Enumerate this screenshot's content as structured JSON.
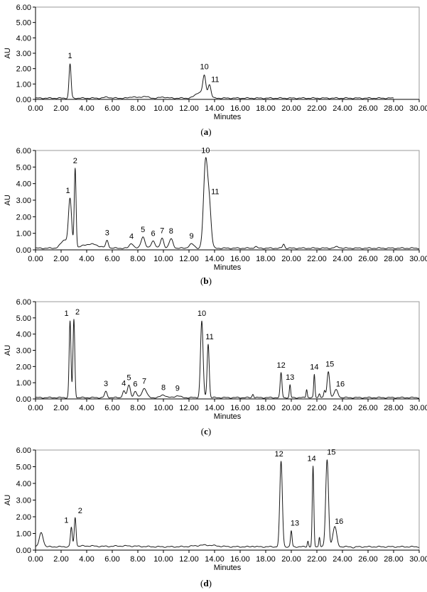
{
  "chart_data": [
    {
      "type": "line",
      "panel": "a",
      "panel_label": "(a)",
      "xlabel": "Minutes",
      "ylabel": "AU",
      "xlim": [
        0,
        30
      ],
      "ylim": [
        0,
        6
      ],
      "x_ticks": [
        "0.00",
        "2.00",
        "4.00",
        "6.00",
        "8.00",
        "10.00",
        "12.00",
        "14.00",
        "16.00",
        "18.00",
        "20.00",
        "22.00",
        "24.00",
        "26.00",
        "28.00",
        "30.00"
      ],
      "y_ticks": [
        "0.00",
        "1.00",
        "2.00",
        "3.00",
        "4.00",
        "5.00",
        "6.00"
      ],
      "trace_end": 28.0,
      "baseline": 0.08,
      "peaks": [
        {
          "label": "1",
          "x": 2.7,
          "y": 2.3,
          "w": 0.08
        },
        {
          "label": "10",
          "x": 13.2,
          "y": 1.4,
          "w": 0.12
        },
        {
          "label": "11",
          "x": 13.6,
          "y": 0.95,
          "w": 0.12
        }
      ],
      "minor_peaks": [
        {
          "x": 5.6,
          "y": 0.15,
          "w": 0.2
        },
        {
          "x": 7.6,
          "y": 0.18,
          "w": 0.2
        },
        {
          "x": 8.5,
          "y": 0.2,
          "w": 0.25
        },
        {
          "x": 10.0,
          "y": 0.15,
          "w": 0.25
        },
        {
          "x": 12.8,
          "y": 0.45,
          "w": 0.3
        }
      ]
    },
    {
      "type": "line",
      "panel": "b",
      "panel_label": "(b)",
      "xlabel": "Minutes",
      "ylabel": "AU",
      "xlim": [
        0,
        30
      ],
      "ylim": [
        0,
        6
      ],
      "x_ticks": [
        "0.00",
        "2.00",
        "4.00",
        "6.00",
        "8.00",
        "10.00",
        "12.00",
        "14.00",
        "16.00",
        "18.00",
        "20.00",
        "22.00",
        "24.00",
        "26.00",
        "28.00",
        "30.00"
      ],
      "y_ticks": [
        "0.00",
        "1.00",
        "2.00",
        "3.00",
        "4.00",
        "5.00",
        "6.00"
      ],
      "trace_end": 30.0,
      "baseline": 0.1,
      "peaks": [
        {
          "label": "1",
          "x": 2.7,
          "y": 2.9,
          "w": 0.12
        },
        {
          "label": "2",
          "x": 3.1,
          "y": 4.9,
          "w": 0.07
        },
        {
          "label": "3",
          "x": 5.6,
          "y": 0.55,
          "w": 0.1
        },
        {
          "label": "4",
          "x": 7.5,
          "y": 0.4,
          "w": 0.15
        },
        {
          "label": "5",
          "x": 8.4,
          "y": 0.8,
          "w": 0.15
        },
        {
          "label": "6",
          "x": 9.2,
          "y": 0.55,
          "w": 0.15
        },
        {
          "label": "7",
          "x": 9.9,
          "y": 0.7,
          "w": 0.13
        },
        {
          "label": "8",
          "x": 10.6,
          "y": 0.65,
          "w": 0.15
        },
        {
          "label": "9",
          "x": 12.2,
          "y": 0.35,
          "w": 0.2
        },
        {
          "label": "10",
          "x": 13.3,
          "y": 5.3,
          "w": 0.16
        },
        {
          "label": "11",
          "x": 13.6,
          "y": 2.4,
          "w": 0.14
        }
      ],
      "minor_peaks": [
        {
          "x": 2.3,
          "y": 0.6,
          "w": 0.3
        },
        {
          "x": 4.3,
          "y": 0.35,
          "w": 0.6
        },
        {
          "x": 19.4,
          "y": 0.35,
          "w": 0.08
        },
        {
          "x": 17.2,
          "y": 0.2,
          "w": 0.1
        },
        {
          "x": 23.6,
          "y": 0.18,
          "w": 0.2
        }
      ]
    },
    {
      "type": "line",
      "panel": "c",
      "panel_label": "(c)",
      "xlabel": "Minutes",
      "ylabel": "AU",
      "xlim": [
        0,
        30
      ],
      "ylim": [
        0,
        6
      ],
      "x_ticks": [
        "0.00",
        "2.00",
        "4.00",
        "6.00",
        "8.00",
        "10.00",
        "12.00",
        "14.00",
        "16.00",
        "18.00",
        "20.00",
        "22.00",
        "24.00",
        "26.00",
        "28.00",
        "30.00"
      ],
      "y_ticks": [
        "0.00",
        "1.00",
        "2.00",
        "3.00",
        "4.00",
        "5.00",
        "6.00"
      ],
      "trace_end": 30.0,
      "baseline": 0.08,
      "peaks": [
        {
          "label": "1",
          "x": 2.7,
          "y": 4.8,
          "w": 0.07
        },
        {
          "label": "2",
          "x": 3.0,
          "y": 4.9,
          "w": 0.07
        },
        {
          "label": "3",
          "x": 5.5,
          "y": 0.45,
          "w": 0.1
        },
        {
          "label": "4",
          "x": 6.9,
          "y": 0.5,
          "w": 0.1
        },
        {
          "label": "5",
          "x": 7.3,
          "y": 0.85,
          "w": 0.12
        },
        {
          "label": "6",
          "x": 7.8,
          "y": 0.45,
          "w": 0.12
        },
        {
          "label": "7",
          "x": 8.5,
          "y": 0.65,
          "w": 0.18
        },
        {
          "label": "8",
          "x": 10.0,
          "y": 0.25,
          "w": 0.2
        },
        {
          "label": "9",
          "x": 11.1,
          "y": 0.2,
          "w": 0.2
        },
        {
          "label": "10",
          "x": 13.0,
          "y": 4.8,
          "w": 0.1
        },
        {
          "label": "11",
          "x": 13.5,
          "y": 3.4,
          "w": 0.08
        },
        {
          "label": "12",
          "x": 19.2,
          "y": 1.6,
          "w": 0.07
        },
        {
          "label": "13",
          "x": 19.9,
          "y": 0.85,
          "w": 0.05
        },
        {
          "label": "14",
          "x": 21.8,
          "y": 1.5,
          "w": 0.05
        },
        {
          "label": "15",
          "x": 22.9,
          "y": 1.7,
          "w": 0.1
        },
        {
          "label": "16",
          "x": 23.5,
          "y": 0.55,
          "w": 0.15
        }
      ],
      "minor_peaks": [
        {
          "x": 17.0,
          "y": 0.3,
          "w": 0.06
        },
        {
          "x": 21.2,
          "y": 0.6,
          "w": 0.05
        },
        {
          "x": 22.2,
          "y": 0.35,
          "w": 0.06
        },
        {
          "x": 22.6,
          "y": 0.5,
          "w": 0.06
        }
      ]
    },
    {
      "type": "line",
      "panel": "d",
      "panel_label": "(d)",
      "xlabel": "Minutes",
      "ylabel": "AU",
      "xlim": [
        0,
        30
      ],
      "ylim": [
        0,
        6
      ],
      "x_ticks": [
        "0.00",
        "2.00",
        "4.00",
        "6.00",
        "8.00",
        "10.00",
        "12.00",
        "14.00",
        "16.00",
        "18.00",
        "20.00",
        "22.00",
        "24.00",
        "26.00",
        "28.00",
        "30.00"
      ],
      "y_ticks": [
        "0.00",
        "1.00",
        "2.00",
        "3.00",
        "4.00",
        "5.00",
        "6.00"
      ],
      "trace_end": 30.0,
      "baseline": 0.2,
      "peaks": [
        {
          "label": "1",
          "x": 2.8,
          "y": 1.35,
          "w": 0.07
        },
        {
          "label": "2",
          "x": 3.1,
          "y": 1.95,
          "w": 0.07
        },
        {
          "label": "12",
          "x": 19.2,
          "y": 5.3,
          "w": 0.1
        },
        {
          "label": "13",
          "x": 20.0,
          "y": 1.15,
          "w": 0.06
        },
        {
          "label": "14",
          "x": 21.7,
          "y": 5.0,
          "w": 0.06
        },
        {
          "label": "15",
          "x": 22.8,
          "y": 5.4,
          "w": 0.11
        },
        {
          "label": "16",
          "x": 23.4,
          "y": 1.4,
          "w": 0.15
        }
      ],
      "minor_peaks": [
        {
          "x": 0.45,
          "y": 1.05,
          "w": 0.15
        },
        {
          "x": 4.0,
          "y": 0.25,
          "w": 0.8
        },
        {
          "x": 7.0,
          "y": 0.25,
          "w": 1.0
        },
        {
          "x": 10.0,
          "y": 0.2,
          "w": 1.2
        },
        {
          "x": 13.3,
          "y": 0.3,
          "w": 0.8
        },
        {
          "x": 17.0,
          "y": 0.25,
          "w": 0.08
        },
        {
          "x": 21.3,
          "y": 0.55,
          "w": 0.05
        },
        {
          "x": 22.2,
          "y": 0.8,
          "w": 0.05
        },
        {
          "x": 24.9,
          "y": 0.15,
          "w": 0.1
        }
      ]
    }
  ]
}
